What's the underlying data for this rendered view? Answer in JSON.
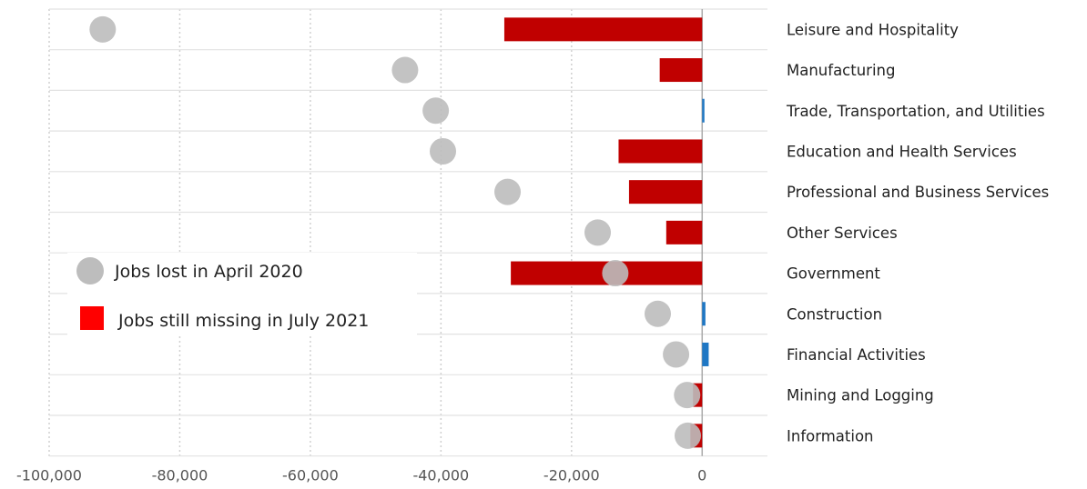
{
  "chart_data": {
    "type": "bar",
    "orientation": "horizontal",
    "categories": [
      "Leisure and Hospitality",
      "Manufacturing",
      "Trade, Transportation, and Utilities",
      "Education and Health Services",
      "Professional and Business Services",
      "Other Services",
      "Government",
      "Construction",
      "Financial Activities",
      "Mining and Logging",
      "Information"
    ],
    "series": [
      {
        "name": "Jobs lost in April 2020",
        "mark": "dot",
        "color": "#bdbdbd",
        "values": [
          -91800,
          -45500,
          -40800,
          -39700,
          -29800,
          -16000,
          -13300,
          -6800,
          -4000,
          -2300,
          -2200
        ]
      },
      {
        "name": "Jobs still missing in July 2021",
        "mark": "bar",
        "color": "#c00000",
        "values": [
          -30300,
          -6500,
          300,
          -12800,
          -11200,
          -5500,
          -29300,
          500,
          1000,
          -1400,
          -1800
        ]
      }
    ],
    "positive_color": "#1f77c4",
    "xlim": [
      -100000,
      10000
    ],
    "xticks": [
      -100000,
      -80000,
      -60000,
      -40000,
      -20000,
      0
    ],
    "xtick_labels": [
      "-100,000",
      "-80,000",
      "-60,000",
      "-40,000",
      "-20,000",
      "0"
    ],
    "grid": true,
    "legend_position": "left-middle",
    "legend_colors": [
      "#bdbdbd",
      "#ff0000"
    ],
    "title": "",
    "xlabel": "",
    "ylabel": ""
  }
}
